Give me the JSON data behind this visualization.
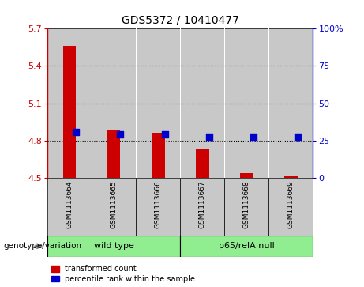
{
  "title": "GDS5372 / 10410477",
  "samples": [
    "GSM1113664",
    "GSM1113665",
    "GSM1113666",
    "GSM1113667",
    "GSM1113668",
    "GSM1113669"
  ],
  "red_values": [
    5.56,
    4.88,
    4.86,
    4.73,
    4.54,
    4.51
  ],
  "blue_values": [
    4.87,
    4.85,
    4.85,
    4.83,
    4.83,
    4.83
  ],
  "ylim_left": [
    4.5,
    5.7
  ],
  "ylim_right": [
    0,
    100
  ],
  "yticks_left": [
    4.5,
    4.8,
    5.1,
    5.4,
    5.7
  ],
  "ytick_labels_left": [
    "4.5",
    "4.8",
    "5.1",
    "5.4",
    "5.7"
  ],
  "yticks_right": [
    0,
    25,
    50,
    75,
    100
  ],
  "ytick_labels_right": [
    "0",
    "25",
    "50",
    "75",
    "100%"
  ],
  "hlines": [
    4.8,
    5.1,
    5.4
  ],
  "bar_bottom": 4.5,
  "groups": [
    {
      "label": "wild type",
      "indices": [
        0,
        1,
        2
      ],
      "color": "#90EE90"
    },
    {
      "label": "p65/relA null",
      "indices": [
        3,
        4,
        5
      ],
      "color": "#90EE90"
    }
  ],
  "genotype_label": "genotype/variation",
  "legend_red": "transformed count",
  "legend_blue": "percentile rank within the sample",
  "bar_color": "#cc0000",
  "dot_color": "#0000cc",
  "bar_width": 0.5,
  "dot_size": 30,
  "col_bg_color": "#c8c8c8",
  "plot_bg_color": "#ffffff",
  "title_fontsize": 10,
  "tick_fontsize": 8,
  "label_fontsize": 8
}
